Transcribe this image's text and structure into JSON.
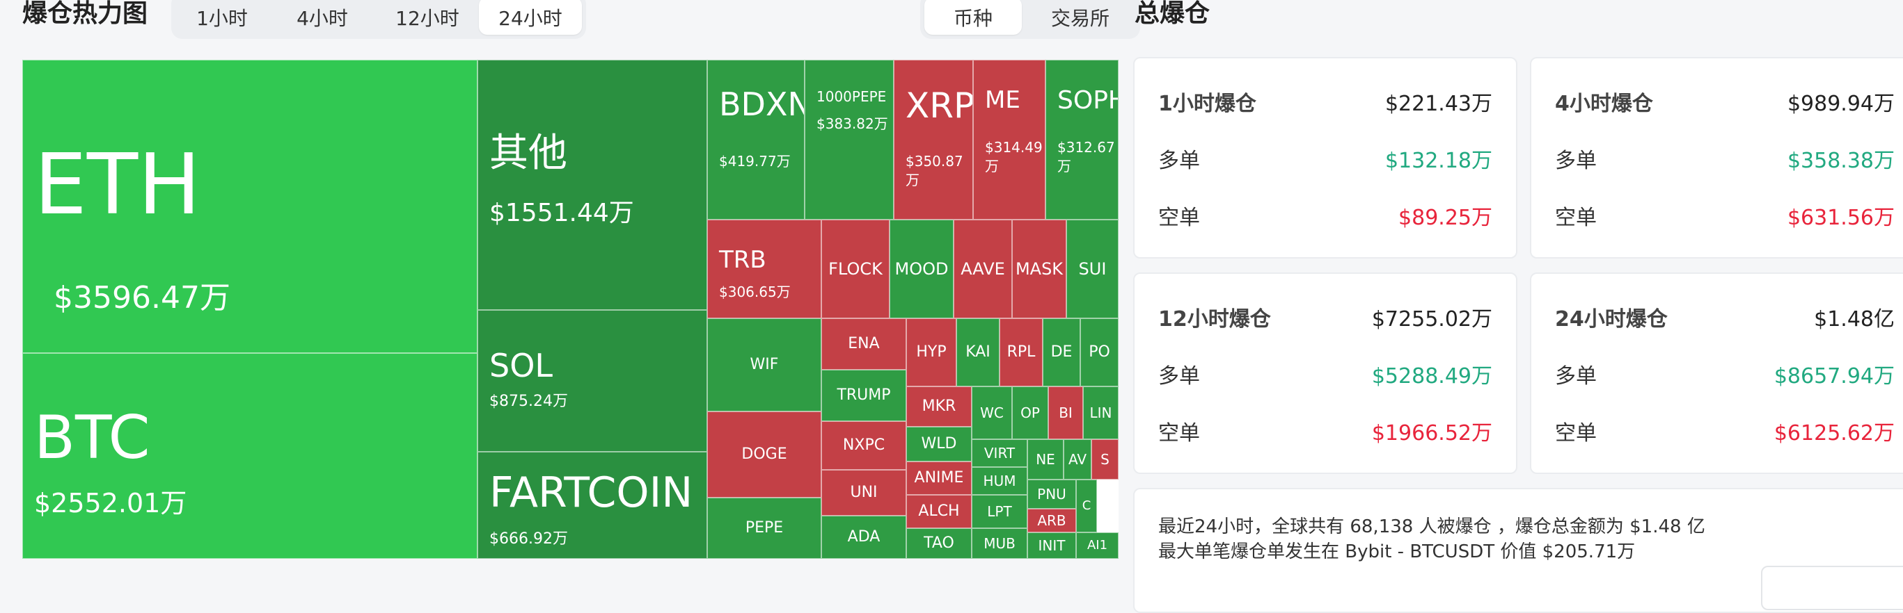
{
  "heatmap": {
    "title": "爆仓热力图",
    "time_tabs": [
      {
        "label": "1小时"
      },
      {
        "label": "4小时"
      },
      {
        "label": "12小时"
      },
      {
        "label": "24小时",
        "active": true
      }
    ],
    "filter_tabs": [
      {
        "label": "币种",
        "active": true
      },
      {
        "label": "交易所"
      }
    ]
  },
  "colors": {
    "green_bright": "#31c852",
    "green": "#2f9c44",
    "green_dark": "#2a9040",
    "red": "#c34046",
    "text_green": "#21a980",
    "text_red": "#e8243b"
  },
  "tiles": [
    {
      "name": "ETH",
      "value": "$3596.47万",
      "side": "long"
    },
    {
      "name": "BTC",
      "value": "$2552.01万",
      "side": "long"
    },
    {
      "name": "其他",
      "value": "$1551.44万",
      "side": "long"
    },
    {
      "name": "SOL",
      "value": "$875.24万",
      "side": "long"
    },
    {
      "name": "FARTCOIN",
      "value": "$666.92万",
      "side": "long"
    },
    {
      "name": "BDXN",
      "value": "$419.77万",
      "side": "long"
    },
    {
      "name": "1000PEPE",
      "value": "$383.82万",
      "side": "long"
    },
    {
      "name": "XRP",
      "value": "$350.87万",
      "side": "short"
    },
    {
      "name": "ME",
      "value": "$314.49万",
      "side": "short"
    },
    {
      "name": "SOPH",
      "value": "$312.67万",
      "side": "long"
    },
    {
      "name": "TRB",
      "value": "$306.65万",
      "side": "short"
    },
    {
      "name": "FLOCK",
      "side": "short"
    },
    {
      "name": "MOOD",
      "side": "long"
    },
    {
      "name": "AAVE",
      "side": "short"
    },
    {
      "name": "MASK",
      "side": "short"
    },
    {
      "name": "SUI",
      "side": "long"
    },
    {
      "name": "WIF",
      "side": "long"
    },
    {
      "name": "DOGE",
      "side": "short"
    },
    {
      "name": "PEPE",
      "side": "long"
    },
    {
      "name": "ENA",
      "side": "short"
    },
    {
      "name": "TRUMP",
      "side": "long"
    },
    {
      "name": "NXPC",
      "side": "short"
    },
    {
      "name": "UNI",
      "side": "short"
    },
    {
      "name": "ADA",
      "side": "long"
    },
    {
      "name": "HYP",
      "side": "short"
    },
    {
      "name": "KAI",
      "side": "long"
    },
    {
      "name": "RPL",
      "side": "short"
    },
    {
      "name": "DE",
      "side": "long"
    },
    {
      "name": "PO",
      "side": "long"
    },
    {
      "name": "MKR",
      "side": "short"
    },
    {
      "name": "WLD",
      "side": "long"
    },
    {
      "name": "ANIME",
      "side": "short"
    },
    {
      "name": "ALCH",
      "side": "short"
    },
    {
      "name": "TAO",
      "side": "long"
    },
    {
      "name": "WC",
      "side": "long"
    },
    {
      "name": "OP",
      "side": "long"
    },
    {
      "name": "BI",
      "side": "short"
    },
    {
      "name": "LIN",
      "side": "long"
    },
    {
      "name": "VIRT",
      "side": "long"
    },
    {
      "name": "HUM",
      "side": "long"
    },
    {
      "name": "LPT",
      "side": "long"
    },
    {
      "name": "MUB",
      "side": "long"
    },
    {
      "name": "NE",
      "side": "long"
    },
    {
      "name": "AV",
      "side": "long"
    },
    {
      "name": "S",
      "side": "short"
    },
    {
      "name": "PNU",
      "side": "long"
    },
    {
      "name": "C",
      "side": "long"
    },
    {
      "name": "ARB",
      "side": "short"
    },
    {
      "name": "INIT",
      "side": "long"
    },
    {
      "name": "AI1",
      "side": "long"
    }
  ],
  "totals": {
    "title": "总爆仓",
    "long_label": "多单",
    "short_label": "空单",
    "cards": [
      {
        "label": "1小时爆仓",
        "total": "$221.43万",
        "long": "$132.18万",
        "short": "$89.25万"
      },
      {
        "label": "4小时爆仓",
        "total": "$989.94万",
        "long": "$358.38万",
        "short": "$631.56万"
      },
      {
        "label": "12小时爆仓",
        "total": "$7255.02万",
        "long": "$5288.49万",
        "short": "$1966.52万"
      },
      {
        "label": "24小时爆仓",
        "total": "$1.48亿",
        "long": "$8657.94万",
        "short": "$6125.62万"
      }
    ],
    "summary_line1": "最近24小时，全球共有 68,138 人被爆仓 ，爆仓总金额为 $1.48 亿",
    "summary_line2": "最大单笔爆仓单发生在 Bybit - BTCUSDT 价值 $205.71万"
  }
}
